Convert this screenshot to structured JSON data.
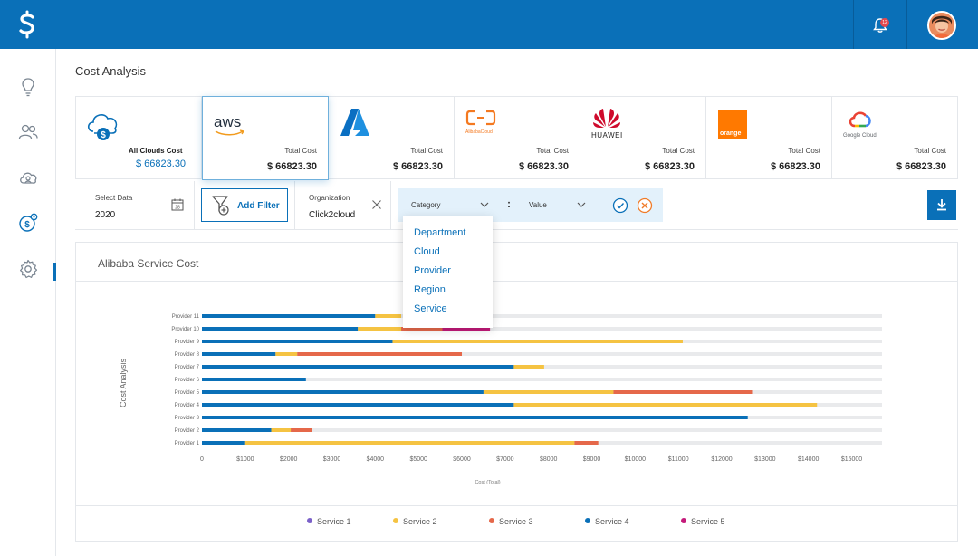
{
  "page_title": "Cost Analysis",
  "topbar": {
    "notification_count": "12"
  },
  "cards": [
    {
      "provider": "all",
      "label": "All Clouds Cost",
      "value": "$ 66823.30"
    },
    {
      "provider": "aws",
      "logo_text": "aws",
      "label": "Total Cost",
      "value": "$ 66823.30"
    },
    {
      "provider": "azure",
      "label": "Total Cost",
      "value": "$ 66823.30"
    },
    {
      "provider": "alibaba",
      "logo_text": "AlibabaCloud",
      "label": "Total Cost",
      "value": "$ 66823.30"
    },
    {
      "provider": "huawei",
      "logo_text": "HUAWEI",
      "label": "Total Cost",
      "value": "$ 66823.30"
    },
    {
      "provider": "orange",
      "logo_text": "orange",
      "label": "Total Cost",
      "value": "$ 66823.30"
    },
    {
      "provider": "google",
      "logo_text": "Google Cloud",
      "label": "Total Cost",
      "value": "$ 66823.30"
    }
  ],
  "filters": {
    "select_data_label": "Select Data",
    "select_data_value": "2020",
    "add_filter_label": "Add Filter",
    "organization_label": "Organization",
    "organization_value": "Click2cloud",
    "category_label": "Category",
    "separator": ":",
    "value_label": "Value"
  },
  "category_dropdown": [
    "Department",
    "Cloud",
    "Provider",
    "Region",
    "Service"
  ],
  "colors": {
    "primary": "#0a70b8",
    "service1": "#7b61c9",
    "service2": "#f5c342",
    "service3": "#e5684a",
    "service4": "#0a70b8",
    "service5": "#c41a7a",
    "track": "#e9eaec",
    "cancel": "#f07c2a"
  },
  "chart_data": {
    "type": "bar",
    "orientation": "horizontal",
    "stacked": true,
    "title": "Alibaba Service Cost",
    "xlabel": "Cost (Total)",
    "ylabel": "Cost Analysis",
    "xlim": [
      0,
      15700
    ],
    "x_ticks": [
      "0",
      "$1000",
      "$2000",
      "$3000",
      "$4000",
      "$5000",
      "$6000",
      "$7000",
      "$8000",
      "$9000",
      "$10000",
      "$11000",
      "$12000",
      "$13000",
      "$14000",
      "$15000"
    ],
    "x_tick_values": [
      0,
      1000,
      2000,
      3000,
      4000,
      5000,
      6000,
      7000,
      8000,
      9000,
      10000,
      11000,
      12000,
      13000,
      14000,
      15000
    ],
    "categories": [
      "Provider 1",
      "Provider 2",
      "Provider 3",
      "Provider 4",
      "Provider 5",
      "Provider 6",
      "Provider 7",
      "Provider 8",
      "Provider 9",
      "Provider 10",
      "Provider 11"
    ],
    "series": [
      {
        "name": "Service 1",
        "values": [
          0,
          0,
          0,
          0,
          0,
          0,
          0,
          0,
          0,
          0,
          0
        ]
      },
      {
        "name": "Service 2",
        "values": [
          7600,
          450,
          0,
          7000,
          3000,
          0,
          700,
          500,
          6700,
          1000,
          600
        ]
      },
      {
        "name": "Service 3",
        "values": [
          550,
          500,
          0,
          0,
          3200,
          0,
          0,
          3800,
          0,
          950,
          0
        ]
      },
      {
        "name": "Service 4",
        "values": [
          1000,
          1600,
          12600,
          7200,
          6500,
          2400,
          7200,
          1700,
          4400,
          3600,
          4000
        ]
      },
      {
        "name": "Service 5",
        "values": [
          0,
          0,
          0,
          0,
          0,
          0,
          0,
          0,
          0,
          1100,
          0
        ]
      }
    ]
  }
}
